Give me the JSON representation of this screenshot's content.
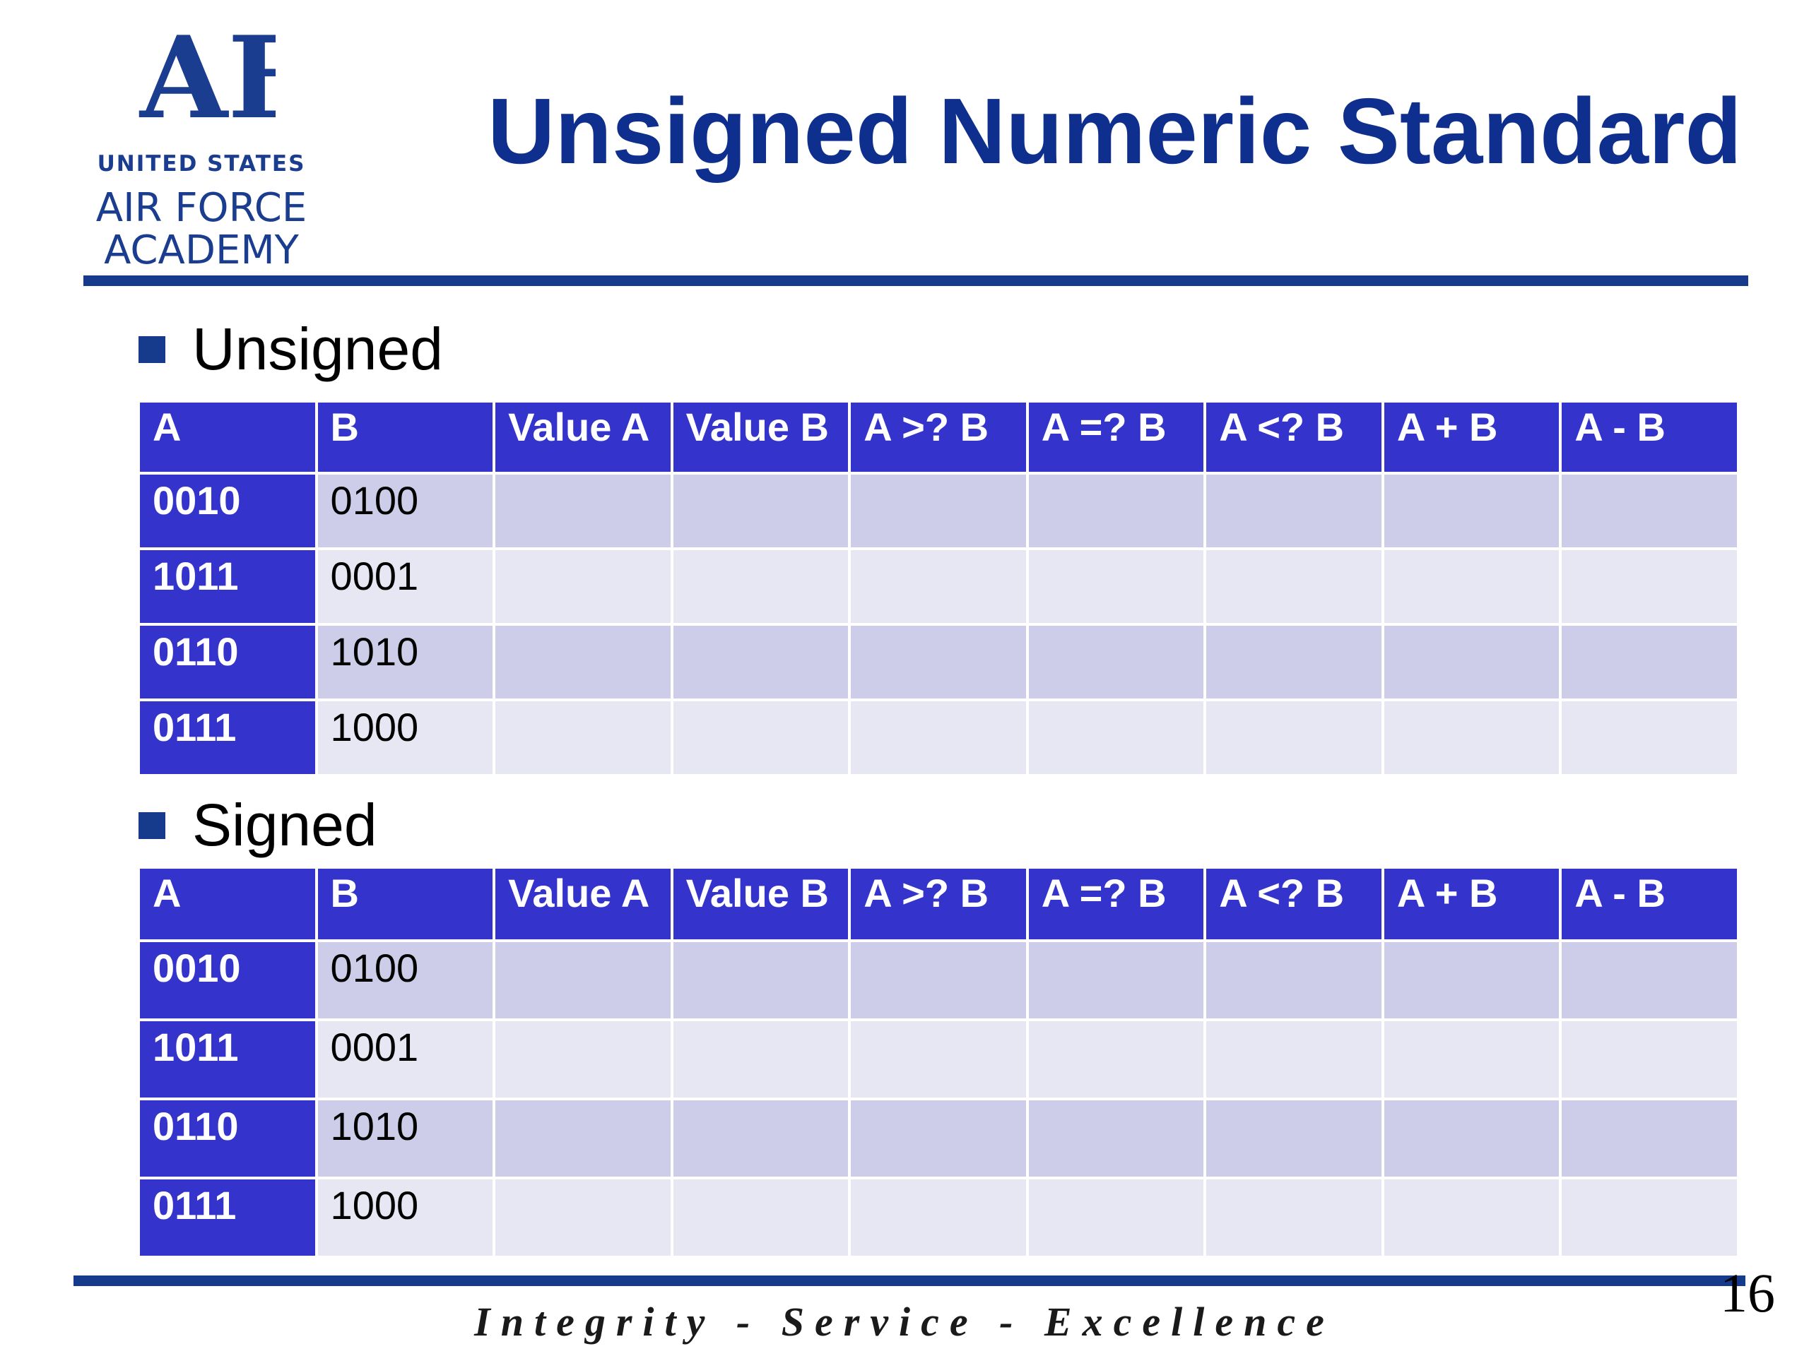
{
  "logo": {
    "mark_text": "AF",
    "line1": "UNITED STATES",
    "line2": "AIR FORCE",
    "line3": "ACADEMY",
    "color": "#1b3d8f"
  },
  "title": "Unsigned Numeric Standard",
  "sections": [
    {
      "label": "Unsigned",
      "headers": [
        "A",
        "B",
        "Value A",
        "Value B",
        "A >? B",
        "A =? B",
        "A <? B",
        "A + B",
        "A - B"
      ],
      "rows": [
        [
          "0010",
          "0100",
          "",
          "",
          "",
          "",
          "",
          "",
          ""
        ],
        [
          "1011",
          "0001",
          "",
          "",
          "",
          "",
          "",
          "",
          ""
        ],
        [
          "0110",
          "1010",
          "",
          "",
          "",
          "",
          "",
          "",
          ""
        ],
        [
          "0111",
          "1000",
          "",
          "",
          "",
          "",
          "",
          "",
          ""
        ]
      ]
    },
    {
      "label": "Signed",
      "headers": [
        "A",
        "B",
        "Value A",
        "Value B",
        "A >? B",
        "A =? B",
        "A <? B",
        "A + B",
        "A - B"
      ],
      "rows": [
        [
          "0010",
          "0100",
          "",
          "",
          "",
          "",
          "",
          "",
          ""
        ],
        [
          "1011",
          "0001",
          "",
          "",
          "",
          "",
          "",
          "",
          ""
        ],
        [
          "0110",
          "1010",
          "",
          "",
          "",
          "",
          "",
          "",
          ""
        ],
        [
          "0111",
          "1000",
          "",
          "",
          "",
          "",
          "",
          "",
          ""
        ]
      ]
    }
  ],
  "footer": {
    "motto": "Integrity - Service - Excellence",
    "page_number": "16"
  },
  "colors": {
    "header_fill": "#3434cc",
    "row_odd": "#cdcdea",
    "row_even": "#e7e7f4",
    "rule": "#163a8c",
    "title": "#0f2f8f"
  }
}
